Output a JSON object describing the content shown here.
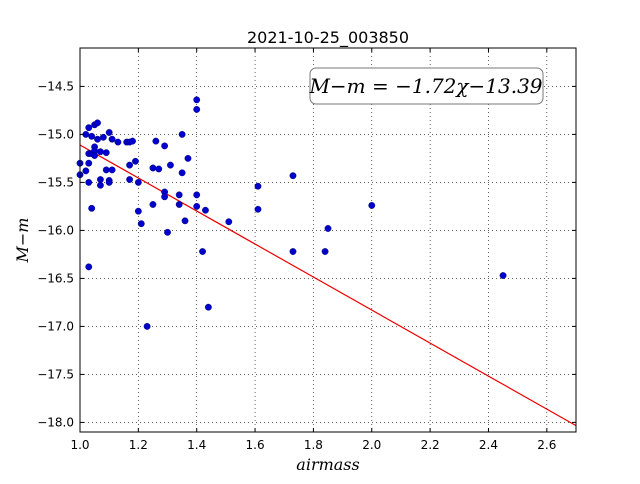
{
  "chart_data": {
    "type": "scatter",
    "title": "2021-10-25_003850",
    "xlabel": "airmass",
    "ylabel": "M−m",
    "xlim": [
      1.0,
      2.7
    ],
    "ylim": [
      -18.1,
      -14.1
    ],
    "y_inverted": true,
    "grid": "dotted",
    "x_ticks": [
      "1.0",
      "1.2",
      "1.4",
      "1.6",
      "1.8",
      "2.0",
      "2.2",
      "2.4",
      "2.6"
    ],
    "y_ticks": [
      "−14.5",
      "−15.0",
      "−15.5",
      "−16.0",
      "−16.5",
      "−17.0",
      "−17.5",
      "−18.0"
    ],
    "annotation": "M−m = −1.72χ−13.39",
    "fit": {
      "slope": -1.72,
      "intercept": -13.39,
      "color": "#ee0000"
    },
    "point_color": "#0000cc",
    "points": [
      [
        1.0,
        -15.3
      ],
      [
        1.0,
        -15.42
      ],
      [
        1.02,
        -15.0
      ],
      [
        1.02,
        -15.38
      ],
      [
        1.03,
        -14.93
      ],
      [
        1.03,
        -15.2
      ],
      [
        1.03,
        -15.3
      ],
      [
        1.03,
        -15.5
      ],
      [
        1.03,
        -16.38
      ],
      [
        1.04,
        -15.02
      ],
      [
        1.04,
        -15.2
      ],
      [
        1.04,
        -15.77
      ],
      [
        1.05,
        -14.9
      ],
      [
        1.05,
        -15.13
      ],
      [
        1.05,
        -15.17
      ],
      [
        1.05,
        -15.22
      ],
      [
        1.06,
        -14.88
      ],
      [
        1.06,
        -15.05
      ],
      [
        1.07,
        -15.18
      ],
      [
        1.07,
        -15.47
      ],
      [
        1.07,
        -15.53
      ],
      [
        1.08,
        -15.03
      ],
      [
        1.09,
        -15.19
      ],
      [
        1.09,
        -15.37
      ],
      [
        1.1,
        -14.98
      ],
      [
        1.1,
        -15.48
      ],
      [
        1.1,
        -15.5
      ],
      [
        1.11,
        -15.05
      ],
      [
        1.11,
        -15.37
      ],
      [
        1.13,
        -15.08
      ],
      [
        1.16,
        -15.08
      ],
      [
        1.17,
        -15.08
      ],
      [
        1.17,
        -15.32
      ],
      [
        1.17,
        -15.47
      ],
      [
        1.18,
        -15.07
      ],
      [
        1.19,
        -15.28
      ],
      [
        1.2,
        -15.5
      ],
      [
        1.2,
        -15.8
      ],
      [
        1.21,
        -15.93
      ],
      [
        1.23,
        -17.0
      ],
      [
        1.25,
        -15.35
      ],
      [
        1.25,
        -15.73
      ],
      [
        1.26,
        -15.07
      ],
      [
        1.27,
        -15.36
      ],
      [
        1.29,
        -15.12
      ],
      [
        1.29,
        -15.6
      ],
      [
        1.29,
        -15.65
      ],
      [
        1.3,
        -16.02
      ],
      [
        1.31,
        -15.32
      ],
      [
        1.34,
        -15.63
      ],
      [
        1.34,
        -15.73
      ],
      [
        1.35,
        -15.0
      ],
      [
        1.35,
        -15.4
      ],
      [
        1.36,
        -15.9
      ],
      [
        1.37,
        -15.25
      ],
      [
        1.4,
        -14.64
      ],
      [
        1.4,
        -14.74
      ],
      [
        1.4,
        -15.63
      ],
      [
        1.4,
        -15.75
      ],
      [
        1.42,
        -16.22
      ],
      [
        1.43,
        -15.79
      ],
      [
        1.44,
        -16.8
      ],
      [
        1.51,
        -15.91
      ],
      [
        1.61,
        -15.54
      ],
      [
        1.61,
        -15.78
      ],
      [
        1.73,
        -15.43
      ],
      [
        1.73,
        -16.22
      ],
      [
        1.84,
        -16.22
      ],
      [
        1.85,
        -15.98
      ],
      [
        2.0,
        -15.74
      ],
      [
        2.45,
        -16.47
      ]
    ]
  }
}
